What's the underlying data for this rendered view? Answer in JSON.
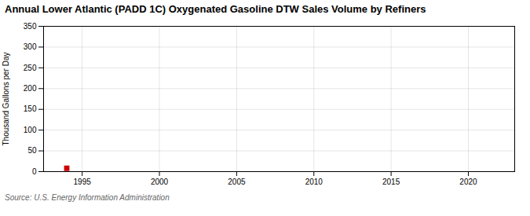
{
  "chart_data": {
    "type": "scatter",
    "title": "Annual Lower Atlantic (PADD 1C) Oxygenated Gasoline DTW Sales Volume by Refiners",
    "ylabel": "Thousand Gallons per Day",
    "source": "Source: U.S. Energy Information Administration",
    "x": [
      1994
    ],
    "values": [
      8
    ],
    "color": "#cc0000",
    "marker": "square",
    "xlim": [
      1992.5,
      2023
    ],
    "xticks": [
      1995,
      2000,
      2005,
      2010,
      2015,
      2020
    ],
    "ylim": [
      0,
      350
    ],
    "yticks": [
      0,
      50,
      100,
      150,
      200,
      250,
      300,
      350
    ],
    "grid": true
  }
}
